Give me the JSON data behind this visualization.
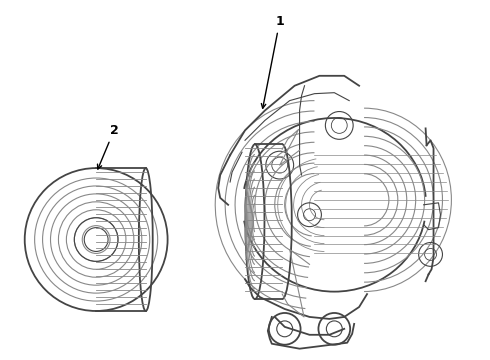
{
  "background_color": "#ffffff",
  "line_color": "#888888",
  "dark_line_color": "#444444",
  "label_color": "#000000",
  "lw_main": 1.3,
  "lw_detail": 0.8,
  "lw_fine": 0.6
}
